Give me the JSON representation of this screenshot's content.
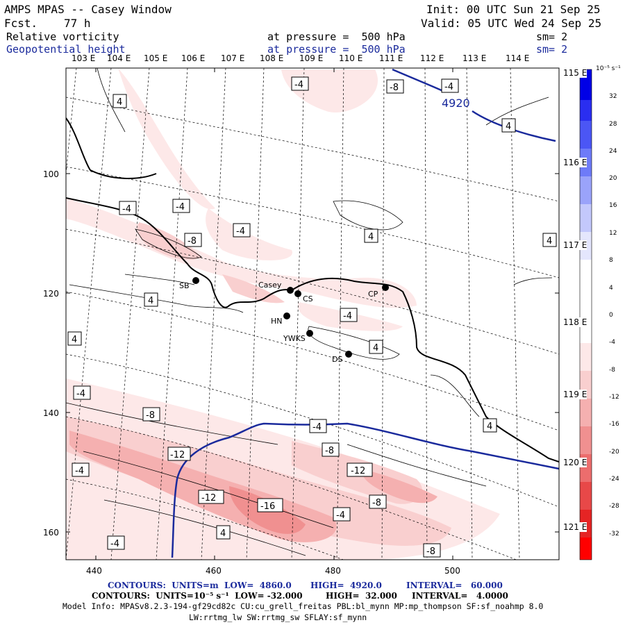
{
  "header": {
    "title": "AMPS MPAS -- Casey Window",
    "fcst_label": "Fcst.",
    "fcst_value": "77 h",
    "init": "Init: 00 UTC Sun 21 Sep 25",
    "valid": "Valid: 05 UTC Wed 24 Sep 25",
    "field1": "Relative vorticity",
    "field1_level": "at pressure =  500 hPa",
    "field1_sm": "sm= 2",
    "field2": "Geopotential height",
    "field2_level": "at pressure =  500 hPa",
    "field2_sm": "sm= 2"
  },
  "top_longitudes": [
    "103 E",
    "104 E",
    "105 E",
    "106 E",
    "107 E",
    "108 E",
    "109 E",
    "110 E",
    "111 E",
    "112 E",
    "113 E",
    "114 E"
  ],
  "right_longitudes": [
    "115 E",
    "116 E",
    "117 E",
    "118 E",
    "119 E",
    "120 E",
    "121 E"
  ],
  "y_ticks": [
    "100",
    "120",
    "140",
    "160"
  ],
  "x_ticks": [
    "440",
    "460",
    "480",
    "500"
  ],
  "stations": [
    "SB",
    "Casey",
    "CS",
    "CP",
    "HN",
    "YWKS",
    "DS"
  ],
  "vorticity_labels": [
    "-4",
    "-8",
    "-12",
    "-16",
    "4"
  ],
  "height_label": "4920",
  "colorbar": {
    "unit": "10⁻⁵ s⁻¹",
    "ticks": [
      "32",
      "28",
      "24",
      "20",
      "16",
      "12",
      "8",
      "4",
      "0",
      "-4",
      "-8",
      "-12",
      "-16",
      "-20",
      "-24",
      "-28",
      "-32"
    ],
    "colors": [
      "#0000e6",
      "#2a2ef0",
      "#4b56f5",
      "#6e7bf8",
      "#9aa3fa",
      "#c3c8fc",
      "#e4e6fd",
      "#ffffff",
      "#ffffff",
      "#fde8e8",
      "#f9cfcf",
      "#f5b0b0",
      "#f09090",
      "#ec6d6d",
      "#e84848",
      "#e52424",
      "#ff0000"
    ]
  },
  "footer": {
    "line1_units": "CONTOURS:  UNITS=m  LOW=  4860.0",
    "line1_high": "HIGH=  4920.0",
    "line1_interval": "INTERVAL=   60.000",
    "line2_units": "CONTOURS:  UNITS=10⁻⁵ s⁻¹  LOW= -32.000",
    "line2_high": "HIGH=  32.000",
    "line2_interval": "INTERVAL=   4.0000",
    "model_info": "Model Info: MPASv8.2.3-194-gf29cd82c CU:cu_grell_freitas PBL:bl_mynn MP:mp_thompson SF:sf_noahmp 8.0",
    "model_info2": "LW:rrtmg_lw SW:rrtmg_sw SFLAY:sf_mynn"
  },
  "colors": {
    "height_contour": "#1a2a9c",
    "coast": "#000000",
    "graticule": "#000000"
  }
}
